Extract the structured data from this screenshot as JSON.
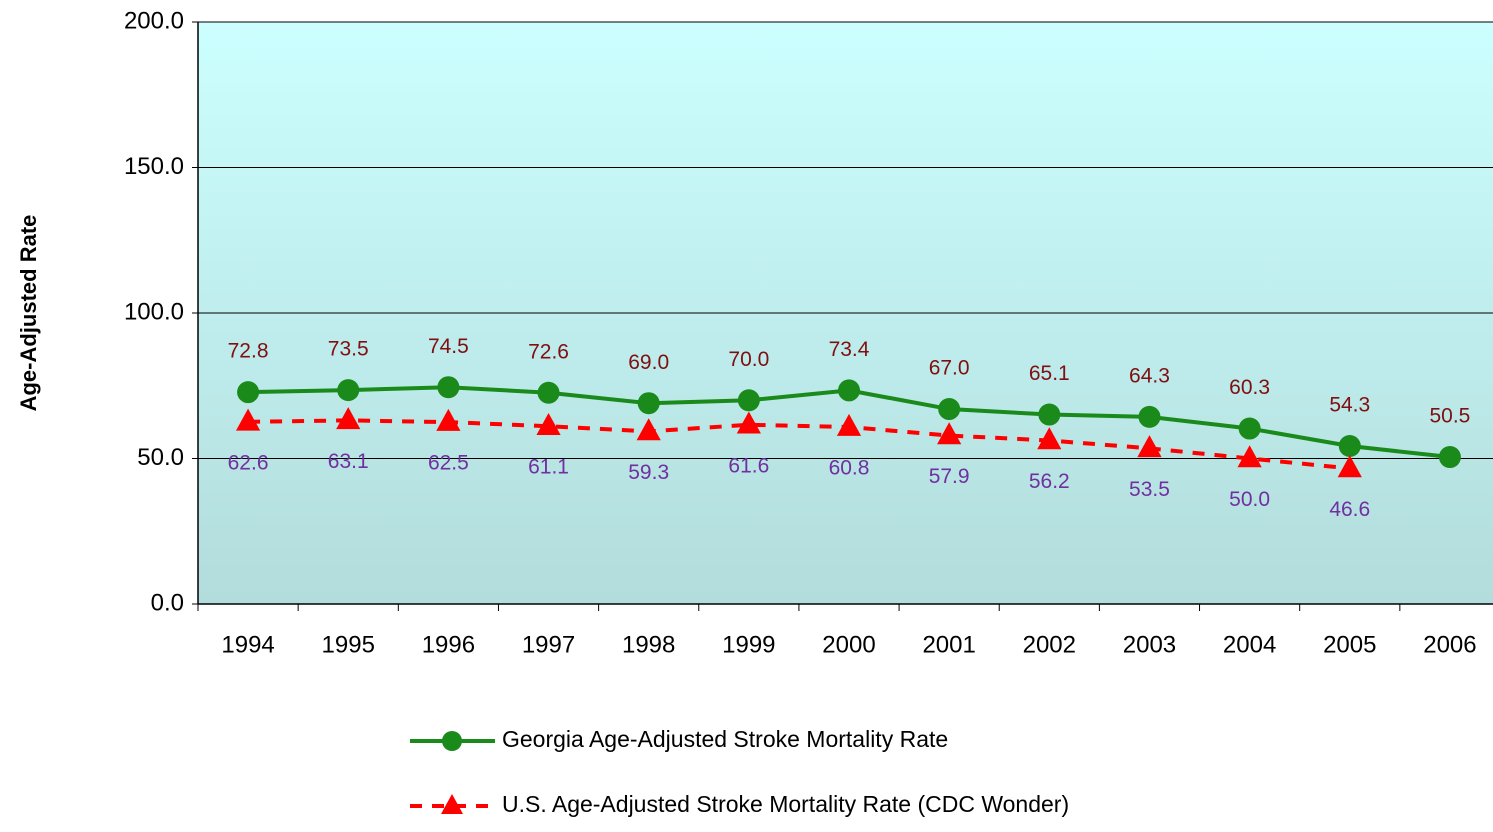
{
  "chart_data": {
    "type": "line",
    "y_label": "Age-Adjusted Rate",
    "categories": [
      "1994",
      "1995",
      "1996",
      "1997",
      "1998",
      "1999",
      "2000",
      "2001",
      "2002",
      "2003",
      "2004",
      "2005",
      "2006"
    ],
    "series": [
      {
        "name": "Georgia Age-Adjusted Stroke Mortality Rate",
        "color": "#1a8a1a",
        "label_color": "#7f1010",
        "marker": "circle",
        "dash": false,
        "label_position": "above",
        "values": [
          72.8,
          73.5,
          74.5,
          72.6,
          69.0,
          70.0,
          73.4,
          67.0,
          65.1,
          64.3,
          60.3,
          54.3,
          50.5
        ],
        "value_labels": [
          "72.8",
          "73.5",
          "74.5",
          "72.6",
          "69.0",
          "70.0",
          "73.4",
          "67.0",
          "65.1",
          "64.3",
          "60.3",
          "54.3",
          "50.5"
        ]
      },
      {
        "name": "U.S. Age-Adjusted Stroke Mortality Rate (CDC Wonder)",
        "color": "#ff0000",
        "label_color": "#7030a0",
        "marker": "triangle",
        "dash": true,
        "label_position": "below",
        "values": [
          62.6,
          63.1,
          62.5,
          61.1,
          59.3,
          61.6,
          60.8,
          57.9,
          56.2,
          53.5,
          50.0,
          46.6,
          null
        ],
        "value_labels": [
          "62.6",
          "63.1",
          "62.5",
          "61.1",
          "59.3",
          "61.6",
          "60.8",
          "57.9",
          "56.2",
          "53.5",
          "50.0",
          "46.6",
          null
        ]
      }
    ],
    "ylim": [
      0,
      200
    ],
    "yticks": [
      {
        "value": 0,
        "label": "0.0"
      },
      {
        "value": 50,
        "label": "50.0"
      },
      {
        "value": 100,
        "label": "100.0"
      },
      {
        "value": 150,
        "label": "150.0"
      },
      {
        "value": 200,
        "label": "200.0"
      }
    ],
    "grid": true,
    "legend": "bottom"
  }
}
